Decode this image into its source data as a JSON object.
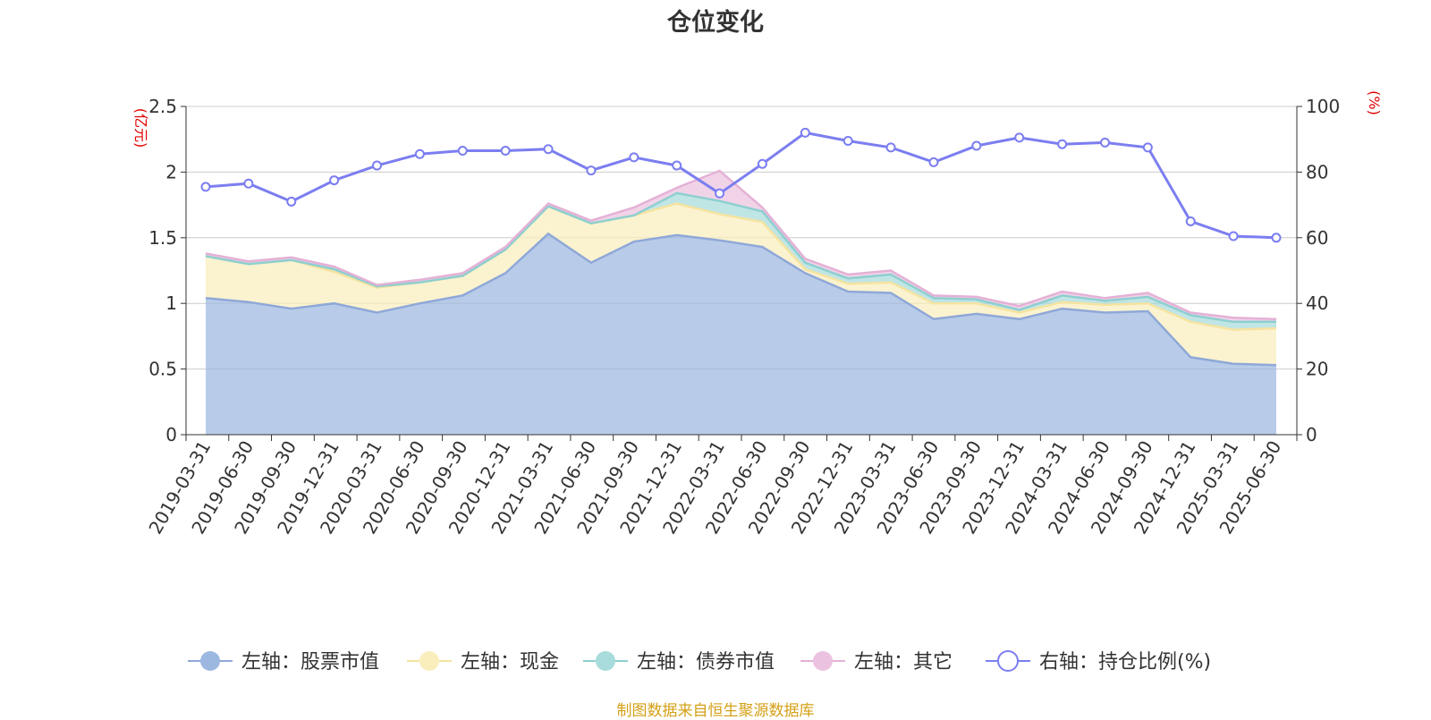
{
  "title": "仓位变化",
  "footer": "制图数据来自恒生聚源数据库",
  "colors": {
    "stock": "#9db8e0",
    "stock_line": "#8fa8d8",
    "cash": "#faeebd",
    "cash_line": "#f5e3a0",
    "bond": "#a8dbdb",
    "bond_line": "#8ecfd0",
    "other": "#ebc2df",
    "other_line": "#e4b1d6",
    "ratio": "#7b7ef0",
    "axis_unit": "#e00000",
    "grid": "#cccccc",
    "footer": "#d4a017"
  },
  "chart_data": {
    "type": "area",
    "x": [
      "2019-03-31",
      "2019-06-30",
      "2019-09-30",
      "2019-12-31",
      "2020-03-31",
      "2020-06-30",
      "2020-09-30",
      "2020-12-31",
      "2021-03-31",
      "2021-06-30",
      "2021-09-30",
      "2021-12-31",
      "2022-03-31",
      "2022-06-30",
      "2022-09-30",
      "2022-12-31",
      "2023-03-31",
      "2023-06-30",
      "2023-09-30",
      "2023-12-31",
      "2024-03-31",
      "2024-06-30",
      "2024-09-30",
      "2024-12-31",
      "2025-03-31",
      "2025-06-30"
    ],
    "left_axis": {
      "unit": "(亿元)",
      "ylim": [
        0,
        2.5
      ],
      "ticks": [
        "0",
        "0.5",
        "1",
        "1.5",
        "2",
        "2.5"
      ]
    },
    "right_axis": {
      "unit": "(%)",
      "ylim": [
        0,
        100
      ],
      "ticks": [
        "0",
        "20",
        "40",
        "60",
        "80",
        "100"
      ]
    },
    "series": [
      {
        "key": "stock",
        "name": "左轴：股票市值",
        "axis": "left",
        "stack": true,
        "values": [
          1.04,
          1.01,
          0.96,
          1.0,
          0.93,
          1.0,
          1.06,
          1.23,
          1.53,
          1.31,
          1.47,
          1.52,
          1.48,
          1.43,
          1.23,
          1.09,
          1.08,
          0.88,
          0.92,
          0.88,
          0.96,
          0.93,
          0.94,
          0.59,
          0.54,
          0.53
        ]
      },
      {
        "key": "cash",
        "name": "左轴：现金",
        "axis": "left",
        "stack": true,
        "values": [
          0.32,
          0.29,
          0.37,
          0.24,
          0.19,
          0.16,
          0.15,
          0.18,
          0.21,
          0.3,
          0.2,
          0.24,
          0.2,
          0.19,
          0.03,
          0.06,
          0.08,
          0.12,
          0.08,
          0.05,
          0.05,
          0.06,
          0.06,
          0.27,
          0.26,
          0.28
        ]
      },
      {
        "key": "bond",
        "name": "左轴：债券市值",
        "axis": "left",
        "stack": true,
        "values": [
          0,
          0,
          0,
          0.02,
          0.01,
          0,
          0,
          0,
          0,
          0,
          0,
          0.08,
          0.1,
          0.08,
          0.05,
          0.04,
          0.06,
          0.04,
          0.03,
          0.02,
          0.05,
          0.03,
          0.05,
          0.05,
          0.06,
          0.05
        ]
      },
      {
        "key": "other",
        "name": "左轴：其它",
        "axis": "left",
        "stack": true,
        "values": [
          0.02,
          0.02,
          0.02,
          0.02,
          0.01,
          0.02,
          0.02,
          0.02,
          0.02,
          0.02,
          0.06,
          0.04,
          0.23,
          0.03,
          0.03,
          0.03,
          0.03,
          0.02,
          0.02,
          0.03,
          0.03,
          0.02,
          0.03,
          0.02,
          0.03,
          0.02
        ]
      },
      {
        "key": "ratio",
        "name": "右轴：持仓比例(%)",
        "axis": "right",
        "type": "line",
        "values": [
          75.5,
          76.5,
          71,
          77.5,
          82,
          85.5,
          86.5,
          86.5,
          87,
          80.5,
          84.5,
          82,
          73.5,
          82.5,
          92,
          89.5,
          87.5,
          83,
          88,
          90.5,
          88.5,
          89,
          87.5,
          65,
          60.5,
          60
        ]
      }
    ],
    "grid": true,
    "legend_position": "bottom"
  }
}
